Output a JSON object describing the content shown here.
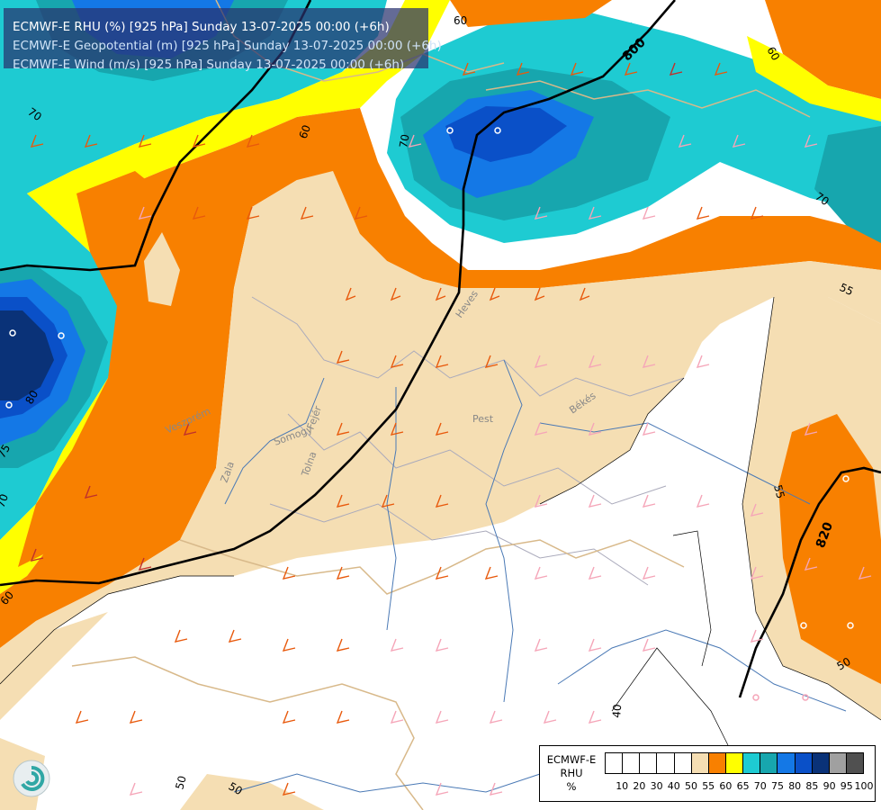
{
  "title": {
    "line1": "ECMWF-E RHU (%) [925 hPa] Sunday 13-07-2025 00:00 (+6h)",
    "line2": "ECMWF-E Geopotential (m) [925 hPa] Sunday 13-07-2025 00:00 (+6h)",
    "line3": "ECMWF-E Wind (m/s) [925 hPa] Sunday 13-07-2025 00:00 (+6h)"
  },
  "legend": {
    "title_line1": "ECMWF-E",
    "title_line2": "RHU",
    "unit": "%",
    "ticks": [
      "10",
      "20",
      "30",
      "40",
      "50",
      "55",
      "60",
      "65",
      "70",
      "75",
      "80",
      "85",
      "90",
      "95",
      "100"
    ],
    "colors": [
      "#ffffff",
      "#ffffff",
      "#ffffff",
      "#ffffff",
      "#ffffff",
      "#f5deb3",
      "#f88000",
      "#ffff00",
      "#1ecbd2",
      "#17a6ae",
      "#1478e6",
      "#0a50c8",
      "#0a3278",
      "#a0a0a0",
      "#505050"
    ]
  },
  "contour_labels": {
    "rhu": [
      "60",
      "70",
      "60",
      "70",
      "80",
      "75",
      "70",
      "60",
      "55",
      "55",
      "50",
      "40",
      "50",
      "50",
      "70",
      "60"
    ],
    "geopotential": [
      "800",
      "820"
    ]
  },
  "region_labels": [
    "Heves",
    "Pest",
    "Békés",
    "Veszprém",
    "Fejér",
    "Somogy",
    "Tolna",
    "Zala"
  ]
}
